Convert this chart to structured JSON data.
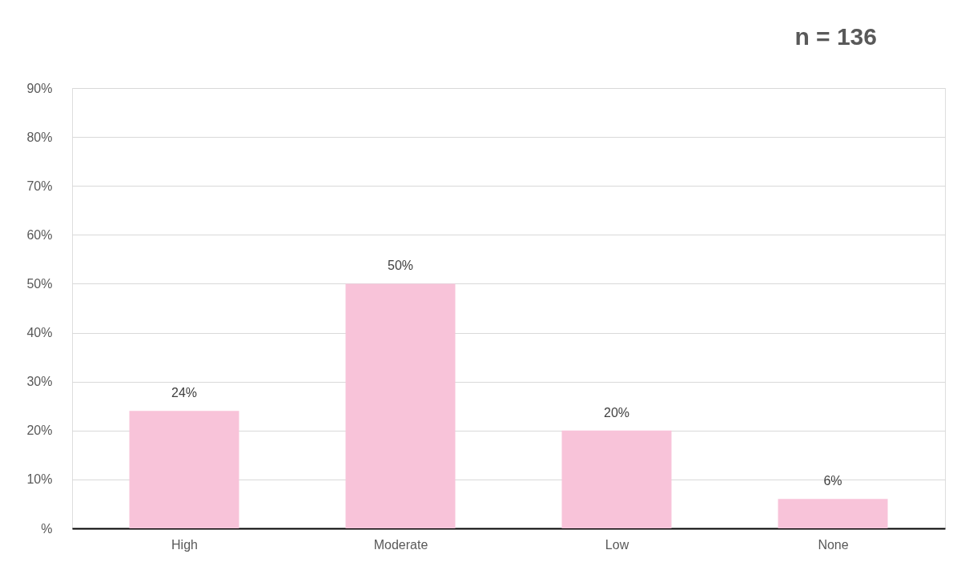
{
  "chart_data": {
    "type": "bar",
    "categories": [
      "High",
      "Moderate",
      "Low",
      "None"
    ],
    "values": [
      24,
      50,
      20,
      6
    ],
    "value_labels": [
      "24%",
      "50%",
      "20%",
      "6%"
    ],
    "color": "#f8c3d9",
    "ylim": [
      0,
      90
    ],
    "yticks": [
      {
        "value": 0,
        "label": "%"
      },
      {
        "value": 10,
        "label": "10%"
      },
      {
        "value": 20,
        "label": "20%"
      },
      {
        "value": 30,
        "label": "30%"
      },
      {
        "value": 40,
        "label": "40%"
      },
      {
        "value": 50,
        "label": "50%"
      },
      {
        "value": 60,
        "label": "60%"
      },
      {
        "value": 70,
        "label": "70%"
      },
      {
        "value": 80,
        "label": "80%"
      },
      {
        "value": 90,
        "label": "90%"
      }
    ],
    "grid": "y",
    "annotations": [
      "n = 136"
    ]
  }
}
